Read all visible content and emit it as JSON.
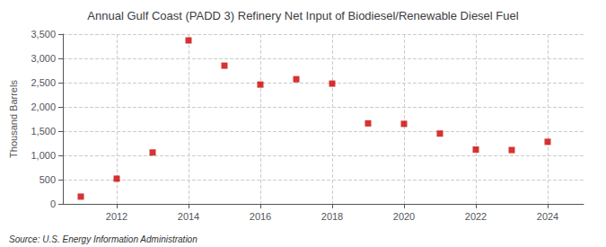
{
  "chart_data": {
    "type": "scatter",
    "title": "Annual Gulf Coast (PADD 3) Refinery Net Input of Biodiesel/Renewable Diesel Fuel",
    "ylabel": "Thousand Barrels",
    "annotations": [
      "Source: U.S. Energy Information Administration"
    ],
    "x": [
      2011,
      2012,
      2013,
      2014,
      2015,
      2016,
      2017,
      2018,
      2019,
      2020,
      2021,
      2022,
      2023,
      2024
    ],
    "values": [
      150,
      520,
      1060,
      3370,
      2850,
      2460,
      2570,
      2480,
      1660,
      1650,
      1450,
      1120,
      1110,
      1280
    ],
    "color": "#cc0000",
    "marker": "square",
    "xlim": [
      2010.5,
      2025.0
    ],
    "xticks": [
      2012,
      2014,
      2016,
      2018,
      2020,
      2022,
      2024
    ],
    "ylim": [
      0,
      3500
    ],
    "yticks": [
      0,
      500,
      {
        "value": 1000,
        "label": "1,000"
      },
      {
        "value": 1500,
        "label": "1,500"
      },
      {
        "value": 2000,
        "label": "2,000"
      },
      {
        "value": 2500,
        "label": "2,500"
      },
      {
        "value": 3000,
        "label": "3,000"
      },
      {
        "value": 3500,
        "label": "3,500"
      }
    ],
    "grid": true
  }
}
